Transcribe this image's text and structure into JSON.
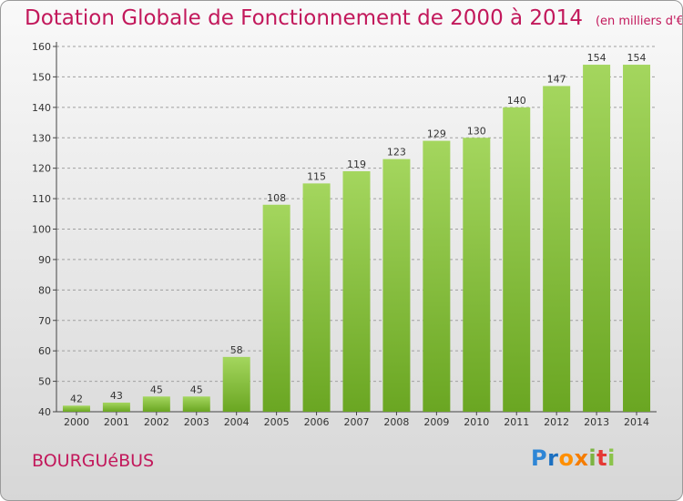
{
  "title": "Dotation Globale de Fonctionnement de 2000 à 2014",
  "subtitle": "(en milliers d'€)",
  "town": "BOURGUéBUS",
  "logo_text": "Proxiti",
  "colors": {
    "title": "#c2185b",
    "bar_light": "#a4d65e",
    "bar_dark": "#6aa622",
    "grid": "#a0a0a0"
  },
  "chart_data": {
    "type": "bar",
    "title": "Dotation Globale de Fonctionnement de 2000 à 2014",
    "subtitle": "(en milliers d'€)",
    "xlabel": "",
    "ylabel": "",
    "categories": [
      "2000",
      "2001",
      "2002",
      "2003",
      "2004",
      "2005",
      "2006",
      "2007",
      "2008",
      "2009",
      "2010",
      "2011",
      "2012",
      "2013",
      "2014"
    ],
    "values": [
      42,
      43,
      45,
      45,
      58,
      108,
      115,
      119,
      123,
      129,
      130,
      140,
      147,
      154,
      154
    ],
    "ylim": [
      40,
      160
    ],
    "yticks": [
      40,
      50,
      60,
      70,
      80,
      90,
      100,
      110,
      120,
      130,
      140,
      150,
      160
    ],
    "grid": "horizontal dashed",
    "legend": "none"
  }
}
